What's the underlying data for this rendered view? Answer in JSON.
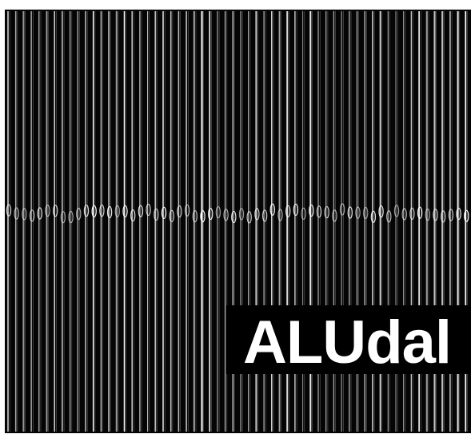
{
  "brand": {
    "text": "ALUdal"
  }
}
